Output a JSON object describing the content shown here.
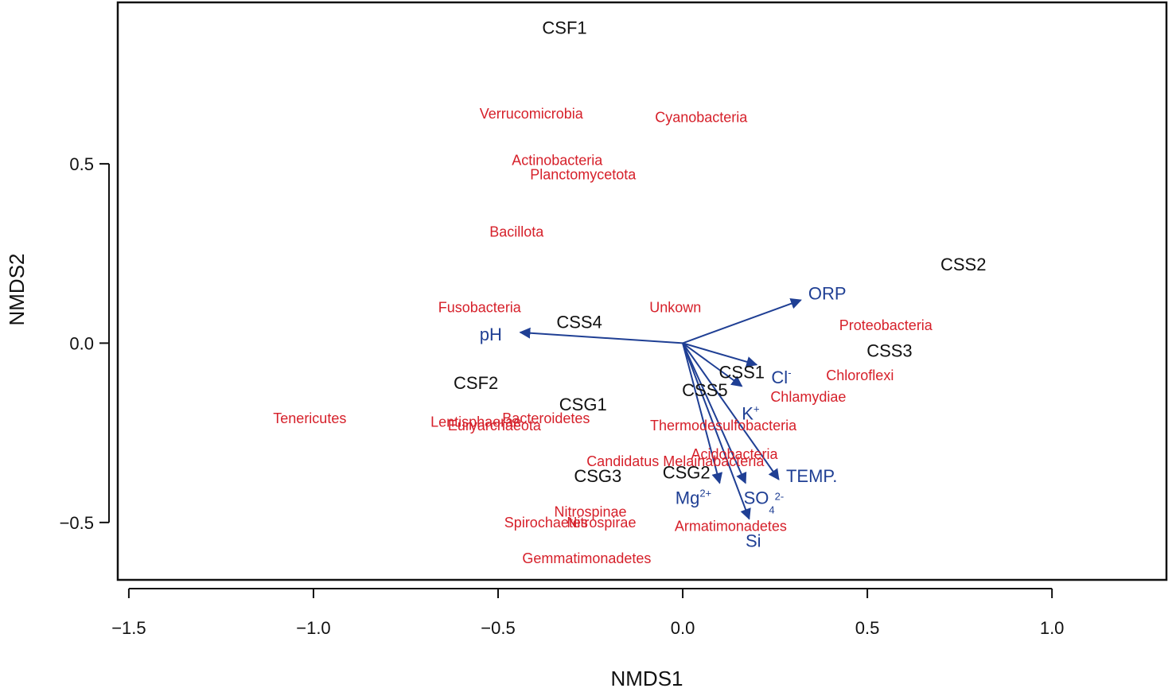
{
  "chart_data": {
    "type": "scatter",
    "title": "",
    "xlabel": "NMDS1",
    "ylabel": "NMDS2",
    "xlim": [
      -1.53,
      1.31
    ],
    "ylim": [
      -0.66,
      0.95
    ],
    "x_ticks": [
      {
        "value": -1.5,
        "label": "−1.5"
      },
      {
        "value": -1.0,
        "label": "−1.0"
      },
      {
        "value": -0.5,
        "label": "−0.5"
      },
      {
        "value": 0.0,
        "label": "0.0"
      },
      {
        "value": 0.5,
        "label": "0.5"
      },
      {
        "value": 1.0,
        "label": "1.0"
      }
    ],
    "y_ticks": [
      {
        "value": -0.5,
        "label": "−0.5"
      },
      {
        "value": 0.0,
        "label": "0.0"
      },
      {
        "value": 0.5,
        "label": "0.5"
      }
    ],
    "colors": {
      "site": "#111111",
      "taxon": "#d6202a",
      "env": "#1f3f94"
    },
    "sites": [
      {
        "label": "CSF1",
        "x": -0.32,
        "y": 0.88
      },
      {
        "label": "CSS2",
        "x": 0.76,
        "y": 0.22
      },
      {
        "label": "CSS4",
        "x": -0.28,
        "y": 0.06
      },
      {
        "label": "CSS3",
        "x": 0.56,
        "y": -0.02
      },
      {
        "label": "CSS1",
        "x": 0.16,
        "y": -0.08
      },
      {
        "label": "CSF2",
        "x": -0.56,
        "y": -0.11
      },
      {
        "label": "CSS5",
        "x": 0.06,
        "y": -0.13
      },
      {
        "label": "CSG1",
        "x": -0.27,
        "y": -0.17
      },
      {
        "label": "CSG3",
        "x": -0.23,
        "y": -0.37
      },
      {
        "label": "CSG2",
        "x": 0.01,
        "y": -0.36
      }
    ],
    "taxa": [
      {
        "label": "Verrucomicrobia",
        "x": -0.41,
        "y": 0.64
      },
      {
        "label": "Cyanobacteria",
        "x": 0.05,
        "y": 0.63
      },
      {
        "label": "Actinobacteria",
        "x": -0.34,
        "y": 0.51
      },
      {
        "label": "Planctomycetota",
        "x": -0.27,
        "y": 0.47
      },
      {
        "label": "Bacillota",
        "x": -0.45,
        "y": 0.31
      },
      {
        "label": "Fusobacteria",
        "x": -0.55,
        "y": 0.1
      },
      {
        "label": "Unkown",
        "x": -0.02,
        "y": 0.1
      },
      {
        "label": "Proteobacteria",
        "x": 0.55,
        "y": 0.05
      },
      {
        "label": "Chloroflexi",
        "x": 0.48,
        "y": -0.09
      },
      {
        "label": "Chlamydiae",
        "x": 0.34,
        "y": -0.15
      },
      {
        "label": "Tenericutes",
        "x": -1.01,
        "y": -0.21
      },
      {
        "label": "Lentisphaerae",
        "x": -0.56,
        "y": -0.22
      },
      {
        "label": "Euryarchaeota",
        "x": -0.51,
        "y": -0.23
      },
      {
        "label": "Bacteroidetes",
        "x": -0.37,
        "y": -0.21
      },
      {
        "label": "Thermodesulfobacteria",
        "x": 0.11,
        "y": -0.23
      },
      {
        "label": "Acidobacteria",
        "x": 0.14,
        "y": -0.31
      },
      {
        "label": "Candidatus Melainabacteria",
        "x": -0.02,
        "y": -0.33
      },
      {
        "label": "Nitrospinae",
        "x": -0.25,
        "y": -0.47
      },
      {
        "label": "Spirochaetes",
        "x": -0.37,
        "y": -0.5
      },
      {
        "label": "Nitrospirae",
        "x": -0.22,
        "y": -0.5
      },
      {
        "label": "Armatimonadetes",
        "x": 0.13,
        "y": -0.51
      },
      {
        "label": "Gemmatimonadetes",
        "x": -0.26,
        "y": -0.6
      }
    ],
    "vectors": [
      {
        "label": "ORP",
        "sup": "",
        "sub": "",
        "sup2": "",
        "x": 0.32,
        "y": 0.12,
        "label_x": 0.34,
        "label_y": 0.14
      },
      {
        "label": "pH",
        "sup": "",
        "sub": "",
        "sup2": "",
        "x": -0.44,
        "y": 0.03,
        "label_x": -0.55,
        "label_y": 0.025
      },
      {
        "label": "Cl",
        "sup": "-",
        "sub": "",
        "sup2": "",
        "x": 0.2,
        "y": -0.06,
        "label_x": 0.24,
        "label_y": -0.095
      },
      {
        "label": "K",
        "sup": "+",
        "sub": "",
        "sup2": "",
        "x": 0.16,
        "y": -0.12,
        "label_x": 0.16,
        "label_y": -0.195
      },
      {
        "label": "TEMP.",
        "sup": "",
        "sub": "",
        "sup2": "",
        "x": 0.26,
        "y": -0.38,
        "label_x": 0.28,
        "label_y": -0.37
      },
      {
        "label": "Mg",
        "sup": "2+",
        "sub": "",
        "sup2": "",
        "x": 0.1,
        "y": -0.39,
        "label_x": -0.02,
        "label_y": -0.43
      },
      {
        "label": "SO",
        "sup": "",
        "sub": "4",
        "sup2": "2-",
        "x": 0.17,
        "y": -0.39,
        "label_x": 0.165,
        "label_y": -0.43
      },
      {
        "label": "Si",
        "sup": "",
        "sub": "",
        "sup2": "",
        "x": 0.18,
        "y": -0.49,
        "label_x": 0.17,
        "label_y": -0.55
      }
    ]
  }
}
